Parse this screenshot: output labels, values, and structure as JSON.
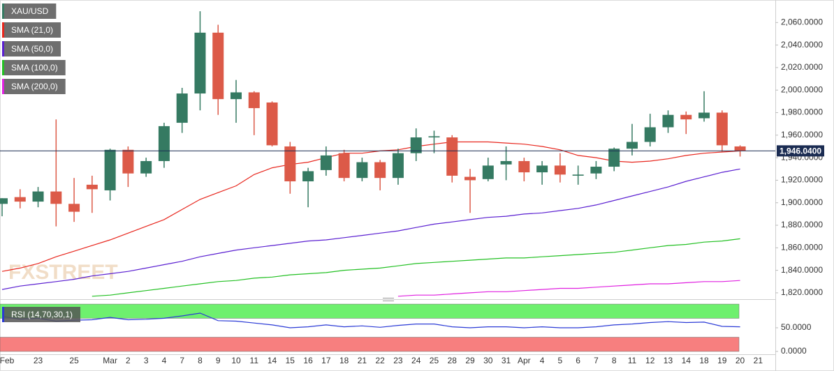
{
  "chart_data": [
    {
      "type": "candlestick",
      "symbol": "XAU/USD",
      "watermark": "FXSTREET",
      "up_color": "#357a62",
      "down_color": "#dc5a48",
      "categories": [
        "Feb",
        null,
        "23",
        null,
        "25",
        null,
        "Mar",
        "2",
        "3",
        "4",
        "7",
        "8",
        "9",
        "10",
        "11",
        "14",
        "15",
        "16",
        "17",
        "18",
        "21",
        "22",
        "23",
        "24",
        "25",
        "28",
        "29",
        "30",
        "31",
        "Apr",
        "4",
        "5",
        "6",
        "7",
        "8",
        "11",
        "12",
        "13",
        "14",
        "18",
        "19",
        "20",
        "21"
      ],
      "open": [
        1899,
        1905,
        1901,
        1910,
        1899,
        1916,
        1911,
        1947,
        1926,
        1937,
        1971,
        1997,
        2051,
        1992,
        1998,
        1989,
        1950,
        1919,
        1929,
        1944,
        1922,
        1936,
        1922,
        1944,
        1958,
        1958,
        1923,
        1921,
        1934,
        1937,
        1927,
        1933,
        1924,
        1926,
        1932,
        1948,
        1954,
        1967,
        1978,
        1975,
        1980,
        1950,
        null
      ],
      "high": [
        1904,
        1912,
        1914,
        1974,
        1922,
        1924,
        1948,
        1950,
        1940,
        1971,
        2002,
        2070,
        2058,
        2009,
        1999,
        1990,
        1954,
        1931,
        1950,
        1947,
        1940,
        1938,
        1948,
        1966,
        1964,
        1960,
        1930,
        1940,
        1950,
        1940,
        1937,
        1944,
        1933,
        1937,
        1949,
        1970,
        1979,
        1982,
        1981,
        1999,
        1982,
        1951,
        null
      ],
      "low": [
        1888,
        1895,
        1896,
        1879,
        1883,
        1891,
        1902,
        1914,
        1923,
        1931,
        1962,
        1982,
        1978,
        1971,
        1960,
        1950,
        1908,
        1896,
        1924,
        1919,
        1919,
        1911,
        1916,
        1937,
        1944,
        1918,
        1891,
        1919,
        1920,
        1919,
        1916,
        1918,
        1916,
        1921,
        1928,
        1942,
        1950,
        1962,
        1961,
        1972,
        1945,
        1941,
        null
      ],
      "close": [
        1904,
        1901,
        1910,
        1899,
        1892,
        1912,
        1947,
        1926,
        1937,
        1968,
        1997,
        2051,
        1992,
        1998,
        1984,
        1951,
        1919,
        1928,
        1942,
        1922,
        1936,
        1922,
        1944,
        1958,
        1959,
        1924,
        1920,
        1933,
        1937,
        1927,
        1933,
        1925,
        1925,
        1932,
        1948,
        1954,
        1967,
        1978,
        1974,
        1980,
        1951,
        1946,
        null
      ],
      "series": [
        {
          "name": "SMA (21,0)",
          "color": "#e8261d",
          "values": [
            1839,
            1842,
            1846,
            1852,
            1857,
            1862,
            1867,
            1873,
            1879,
            1885,
            1894,
            1903,
            1909,
            1915,
            1925,
            1931,
            1934,
            1936,
            1940,
            1944,
            1944,
            1946,
            1947,
            1950,
            1952,
            1954,
            1954,
            1954,
            1953,
            1952,
            1950,
            1947,
            1942,
            1940,
            1937,
            1936,
            1937,
            1939,
            1942,
            1944,
            1945,
            1946,
            null
          ]
        },
        {
          "name": "SMA (50,0)",
          "color": "#5a1fd1",
          "values": [
            1823,
            1826,
            1828,
            1830,
            1832,
            1835,
            1837,
            1839,
            1842,
            1845,
            1848,
            1852,
            1855,
            1858,
            1860,
            1862,
            1864,
            1866,
            1867,
            1869,
            1871,
            1873,
            1875,
            1878,
            1881,
            1883,
            1885,
            1887,
            1888,
            1890,
            1891,
            1893,
            1895,
            1898,
            1902,
            1906,
            1910,
            1914,
            1919,
            1923,
            1927,
            1930,
            null
          ]
        },
        {
          "name": "SMA (100,0)",
          "color": "#22c022",
          "values": [
            null,
            null,
            null,
            null,
            null,
            1817,
            1818,
            1820,
            1822,
            1824,
            1826,
            1828,
            1830,
            1831,
            1833,
            1834,
            1836,
            1837,
            1838,
            1840,
            1841,
            1842,
            1844,
            1846,
            1847,
            1848,
            1849,
            1850,
            1851,
            1851,
            1852,
            1853,
            1854,
            1855,
            1856,
            1858,
            1860,
            1862,
            1863,
            1865,
            1866,
            1868,
            null
          ]
        },
        {
          "name": "SMA (200,0)",
          "color": "#e020e0",
          "values": [
            null,
            null,
            null,
            null,
            null,
            null,
            null,
            null,
            null,
            null,
            null,
            null,
            null,
            null,
            null,
            null,
            null,
            null,
            null,
            null,
            null,
            null,
            1817,
            1818,
            1818,
            1819,
            1820,
            1821,
            1821,
            1822,
            1823,
            1824,
            1824,
            1825,
            1826,
            1827,
            1828,
            1828,
            1829,
            1830,
            1830,
            1831,
            null
          ]
        }
      ],
      "last_price": {
        "value": 1946.04,
        "label": "1,946.0400"
      },
      "last_price_color": "#1b2c52",
      "ylim": [
        1815,
        2080
      ],
      "yticks": [
        {
          "value": 1820,
          "label": "1,820.0000"
        },
        {
          "value": 1840,
          "label": "1,840.0000"
        },
        {
          "value": 1860,
          "label": "1,860.0000"
        },
        {
          "value": 1880,
          "label": "1,880.0000"
        },
        {
          "value": 1900,
          "label": "1,900.0000"
        },
        {
          "value": 1920,
          "label": "1,920.0000"
        },
        {
          "value": 1940,
          "label": "1,940.0000"
        },
        {
          "value": 1960,
          "label": "1,960.0000"
        },
        {
          "value": 1980,
          "label": "1,980.0000"
        },
        {
          "value": 2000,
          "label": "2,000.0000"
        },
        {
          "value": 2020,
          "label": "2,020.0000"
        },
        {
          "value": 2040,
          "label": "2,040.0000"
        },
        {
          "value": 2060,
          "label": "2,060.0000"
        }
      ]
    },
    {
      "type": "line",
      "series": [
        {
          "name": "RSI (14,70,30,1)",
          "color": "#2a3ad6",
          "values": [
            74,
            68,
            70,
            64,
            66,
            67,
            72,
            67,
            68,
            70,
            75,
            81,
            65,
            64,
            60,
            56,
            50,
            52,
            56,
            52,
            54,
            51,
            55,
            58,
            58,
            52,
            50,
            52,
            52,
            50,
            52,
            50,
            50,
            52,
            56,
            58,
            61,
            63,
            61,
            62,
            53,
            52,
            null
          ]
        }
      ],
      "bands": [
        {
          "from": 70,
          "to": 100,
          "color": "#6ef06e"
        },
        {
          "from": 0,
          "to": 30,
          "color": "#f77f7f"
        }
      ],
      "ylim": [
        -6,
        106
      ],
      "yticks": [
        {
          "value": 0,
          "label": "0.0000"
        },
        {
          "value": 50,
          "label": "50.0000"
        }
      ]
    }
  ]
}
